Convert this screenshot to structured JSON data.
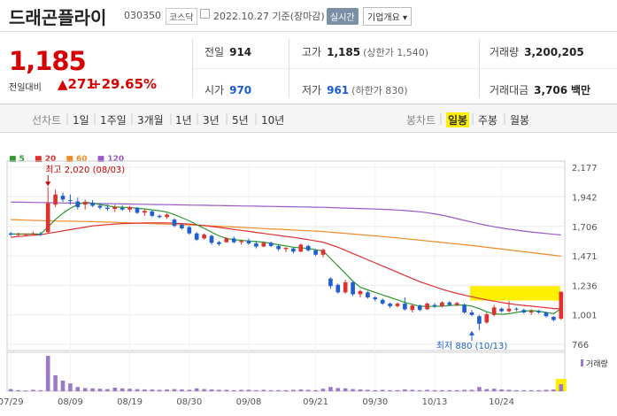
{
  "header": {
    "name": "드래곤플라이",
    "code": "030350",
    "market": "코스닥",
    "date": "2022.10.27 기준(장마감)",
    "live_btn": "실시간",
    "info_btn": "기업개요 ▾"
  },
  "summary": {
    "price": "1,185",
    "change_label": "전일대비",
    "change_value": "271",
    "change_pct": "+29.65%",
    "prev_label": "전일",
    "prev_value": "914",
    "high_label": "고가",
    "high_value": "1,185",
    "high_sub": "(상한가 1,540)",
    "volume_label": "거래량",
    "volume_value": "3,200,205",
    "open_label": "시가",
    "open_value": "970",
    "low_label": "저가",
    "low_value": "961",
    "low_sub": "(하한가 830)",
    "amount_label": "거래대금",
    "amount_value": "3,706",
    "amount_unit": "백만"
  },
  "tabs": {
    "line_label": "선차트",
    "periods": [
      "1일",
      "1주일",
      "3개월",
      "1년",
      "3년",
      "5년",
      "10년"
    ],
    "candle_label": "봉차트",
    "daily": "일봉",
    "weekly": "주봉",
    "monthly": "월봉"
  },
  "legend": [
    {
      "label": "5",
      "color": "#2e9a2e"
    },
    {
      "label": "20",
      "color": "#e03030"
    },
    {
      "label": "60",
      "color": "#f08c28"
    },
    {
      "label": "120",
      "color": "#9b59c6"
    }
  ],
  "colors": {
    "up": "#e03030",
    "down": "#1f5fd1",
    "highlight": "#ffef00"
  },
  "chart_data": {
    "type": "candlestick",
    "y_ticks": [
      2177,
      1942,
      1706,
      1471,
      1236,
      1001,
      766
    ],
    "ylim": [
      766,
      2177
    ],
    "x_labels": [
      "07/29",
      "08/09",
      "08/19",
      "08/30",
      "09/08",
      "09/21",
      "09/30",
      "10/13",
      "10/24"
    ],
    "max_annotation": "최고 2,020 (08/03)",
    "min_annotation": "최저 880 (10/13)",
    "volume_label": "거래량",
    "candles": [
      {
        "o": 1650,
        "h": 1660,
        "l": 1630,
        "c": 1640
      },
      {
        "o": 1640,
        "h": 1655,
        "l": 1630,
        "c": 1645
      },
      {
        "o": 1640,
        "h": 1650,
        "l": 1635,
        "c": 1645
      },
      {
        "o": 1645,
        "h": 1665,
        "l": 1635,
        "c": 1650
      },
      {
        "o": 1645,
        "h": 1660,
        "l": 1630,
        "c": 1640
      },
      {
        "o": 1660,
        "h": 2020,
        "l": 1650,
        "c": 1890
      },
      {
        "o": 1880,
        "h": 2000,
        "l": 1860,
        "c": 1960
      },
      {
        "o": 1950,
        "h": 1975,
        "l": 1900,
        "c": 1920
      },
      {
        "o": 1915,
        "h": 1960,
        "l": 1880,
        "c": 1910
      },
      {
        "o": 1905,
        "h": 1935,
        "l": 1840,
        "c": 1860
      },
      {
        "o": 1880,
        "h": 1920,
        "l": 1840,
        "c": 1900
      },
      {
        "o": 1895,
        "h": 1915,
        "l": 1860,
        "c": 1870
      },
      {
        "o": 1870,
        "h": 1890,
        "l": 1840,
        "c": 1855
      },
      {
        "o": 1855,
        "h": 1880,
        "l": 1830,
        "c": 1845
      },
      {
        "o": 1845,
        "h": 1880,
        "l": 1820,
        "c": 1860
      },
      {
        "o": 1855,
        "h": 1875,
        "l": 1830,
        "c": 1840
      },
      {
        "o": 1840,
        "h": 1870,
        "l": 1820,
        "c": 1860
      },
      {
        "o": 1855,
        "h": 1860,
        "l": 1805,
        "c": 1815
      },
      {
        "o": 1815,
        "h": 1840,
        "l": 1790,
        "c": 1830
      },
      {
        "o": 1825,
        "h": 1835,
        "l": 1780,
        "c": 1790
      },
      {
        "o": 1790,
        "h": 1800,
        "l": 1770,
        "c": 1780
      },
      {
        "o": 1780,
        "h": 1810,
        "l": 1765,
        "c": 1800
      },
      {
        "o": 1760,
        "h": 1770,
        "l": 1700,
        "c": 1710
      },
      {
        "o": 1720,
        "h": 1730,
        "l": 1680,
        "c": 1690
      },
      {
        "o": 1700,
        "h": 1710,
        "l": 1640,
        "c": 1650
      },
      {
        "o": 1650,
        "h": 1660,
        "l": 1590,
        "c": 1600
      },
      {
        "o": 1610,
        "h": 1650,
        "l": 1600,
        "c": 1640
      },
      {
        "o": 1630,
        "h": 1640,
        "l": 1560,
        "c": 1575
      },
      {
        "o": 1580,
        "h": 1590,
        "l": 1550,
        "c": 1565
      },
      {
        "o": 1580,
        "h": 1620,
        "l": 1575,
        "c": 1610
      },
      {
        "o": 1610,
        "h": 1625,
        "l": 1570,
        "c": 1580
      },
      {
        "o": 1580,
        "h": 1600,
        "l": 1560,
        "c": 1590
      },
      {
        "o": 1590,
        "h": 1610,
        "l": 1560,
        "c": 1570
      },
      {
        "o": 1570,
        "h": 1590,
        "l": 1530,
        "c": 1545
      },
      {
        "o": 1545,
        "h": 1580,
        "l": 1540,
        "c": 1575
      },
      {
        "o": 1575,
        "h": 1585,
        "l": 1540,
        "c": 1550
      },
      {
        "o": 1550,
        "h": 1560,
        "l": 1510,
        "c": 1525
      },
      {
        "o": 1525,
        "h": 1540,
        "l": 1500,
        "c": 1535
      },
      {
        "o": 1530,
        "h": 1540,
        "l": 1490,
        "c": 1505
      },
      {
        "o": 1505,
        "h": 1570,
        "l": 1500,
        "c": 1560
      },
      {
        "o": 1550,
        "h": 1560,
        "l": 1505,
        "c": 1515
      },
      {
        "o": 1515,
        "h": 1525,
        "l": 1470,
        "c": 1480
      },
      {
        "o": 1480,
        "h": 1530,
        "l": 1460,
        "c": 1520
      },
      {
        "o": 1290,
        "h": 1300,
        "l": 1210,
        "c": 1230
      },
      {
        "o": 1240,
        "h": 1250,
        "l": 1170,
        "c": 1180
      },
      {
        "o": 1180,
        "h": 1280,
        "l": 1170,
        "c": 1260
      },
      {
        "o": 1260,
        "h": 1275,
        "l": 1150,
        "c": 1165
      },
      {
        "o": 1165,
        "h": 1200,
        "l": 1140,
        "c": 1190
      },
      {
        "o": 1180,
        "h": 1190,
        "l": 1130,
        "c": 1140
      },
      {
        "o": 1140,
        "h": 1150,
        "l": 1110,
        "c": 1125
      },
      {
        "o": 1120,
        "h": 1130,
        "l": 1080,
        "c": 1090
      },
      {
        "o": 1090,
        "h": 1100,
        "l": 1055,
        "c": 1070
      },
      {
        "o": 1070,
        "h": 1100,
        "l": 1060,
        "c": 1090
      },
      {
        "o": 1090,
        "h": 1140,
        "l": 1035,
        "c": 1045
      },
      {
        "o": 1040,
        "h": 1085,
        "l": 1020,
        "c": 1075
      },
      {
        "o": 1075,
        "h": 1085,
        "l": 1030,
        "c": 1040
      },
      {
        "o": 1045,
        "h": 1100,
        "l": 1040,
        "c": 1090
      },
      {
        "o": 1080,
        "h": 1095,
        "l": 1055,
        "c": 1070
      },
      {
        "o": 1070,
        "h": 1110,
        "l": 1060,
        "c": 1100
      },
      {
        "o": 1100,
        "h": 1110,
        "l": 1070,
        "c": 1080
      },
      {
        "o": 1080,
        "h": 1105,
        "l": 1070,
        "c": 1095
      },
      {
        "o": 1080,
        "h": 1090,
        "l": 1010,
        "c": 1020
      },
      {
        "o": 1020,
        "h": 1040,
        "l": 990,
        "c": 1000
      },
      {
        "o": 990,
        "h": 1000,
        "l": 880,
        "c": 930
      },
      {
        "o": 940,
        "h": 1020,
        "l": 930,
        "c": 1005
      },
      {
        "o": 1000,
        "h": 1080,
        "l": 990,
        "c": 1060
      },
      {
        "o": 1050,
        "h": 1060,
        "l": 1020,
        "c": 1030
      },
      {
        "o": 1030,
        "h": 1110,
        "l": 1020,
        "c": 1050
      },
      {
        "o": 1050,
        "h": 1060,
        "l": 1030,
        "c": 1045
      },
      {
        "o": 1040,
        "h": 1050,
        "l": 1010,
        "c": 1020
      },
      {
        "o": 1020,
        "h": 1045,
        "l": 1000,
        "c": 1030
      },
      {
        "o": 1030,
        "h": 1040,
        "l": 1010,
        "c": 1020
      },
      {
        "o": 1020,
        "h": 1025,
        "l": 980,
        "c": 990
      },
      {
        "o": 985,
        "h": 990,
        "l": 950,
        "c": 960
      },
      {
        "o": 970,
        "h": 1185,
        "l": 961,
        "c": 1185
      }
    ],
    "volumes": [
      6,
      3,
      2,
      4,
      3,
      100,
      45,
      30,
      22,
      12,
      9,
      8,
      7,
      6,
      10,
      8,
      7,
      6,
      5,
      5,
      4,
      5,
      6,
      5,
      4,
      8,
      6,
      5,
      4,
      4,
      3,
      4,
      4,
      3,
      4,
      3,
      3,
      3,
      4,
      5,
      4,
      3,
      7,
      12,
      9,
      8,
      6,
      5,
      4,
      3,
      4,
      3,
      3,
      5,
      4,
      3,
      4,
      3,
      3,
      3,
      3,
      4,
      4,
      12,
      6,
      7,
      5,
      4,
      3,
      3,
      3,
      3,
      4,
      5,
      16
    ],
    "ma5": [
      1645,
      1645,
      1645,
      1645,
      1645,
      1700,
      1760,
      1810,
      1850,
      1880,
      1900,
      1890,
      1880,
      1870,
      1860,
      1858,
      1856,
      1850,
      1845,
      1838,
      1830,
      1820,
      1800,
      1775,
      1750,
      1720,
      1690,
      1660,
      1630,
      1610,
      1600,
      1595,
      1590,
      1585,
      1580,
      1570,
      1560,
      1550,
      1540,
      1535,
      1530,
      1520,
      1510,
      1450,
      1390,
      1330,
      1270,
      1220,
      1200,
      1180,
      1160,
      1140,
      1120,
      1100,
      1085,
      1070,
      1068,
      1068,
      1070,
      1075,
      1078,
      1080,
      1070,
      1050,
      1025,
      1010,
      1005,
      1010,
      1020,
      1030,
      1035,
      1030,
      1020,
      1010,
      1050
    ],
    "ma20": [
      1620,
      1625,
      1630,
      1635,
      1640,
      1650,
      1660,
      1670,
      1680,
      1690,
      1700,
      1710,
      1715,
      1720,
      1725,
      1728,
      1730,
      1732,
      1733,
      1734,
      1735,
      1734,
      1732,
      1728,
      1724,
      1718,
      1712,
      1705,
      1698,
      1690,
      1682,
      1674,
      1666,
      1658,
      1650,
      1642,
      1634,
      1626,
      1618,
      1610,
      1600,
      1590,
      1580,
      1560,
      1540,
      1515,
      1490,
      1465,
      1440,
      1415,
      1390,
      1365,
      1340,
      1315,
      1290,
      1265,
      1245,
      1225,
      1205,
      1188,
      1172,
      1158,
      1145,
      1132,
      1120,
      1110,
      1100,
      1090,
      1082,
      1076,
      1070,
      1064,
      1058,
      1052,
      1048
    ],
    "ma60": [
      1760,
      1758,
      1756,
      1754,
      1752,
      1750,
      1749,
      1748,
      1747,
      1746,
      1745,
      1744,
      1742,
      1740,
      1738,
      1736,
      1734,
      1732,
      1730,
      1728,
      1726,
      1724,
      1722,
      1720,
      1718,
      1716,
      1713,
      1710,
      1707,
      1704,
      1701,
      1698,
      1695,
      1692,
      1689,
      1686,
      1683,
      1680,
      1677,
      1674,
      1671,
      1668,
      1665,
      1660,
      1655,
      1650,
      1645,
      1640,
      1635,
      1630,
      1625,
      1620,
      1614,
      1608,
      1602,
      1596,
      1590,
      1584,
      1578,
      1572,
      1566,
      1560,
      1553,
      1546,
      1539,
      1532,
      1525,
      1518,
      1511,
      1504,
      1497,
      1490,
      1483,
      1476,
      1468
    ],
    "ma120": [
      1900,
      1899,
      1898,
      1897,
      1896,
      1895,
      1894,
      1893,
      1892,
      1891,
      1890,
      1889,
      1888,
      1887,
      1886,
      1885,
      1884,
      1883,
      1882,
      1881,
      1880,
      1879,
      1878,
      1877,
      1876,
      1875,
      1874,
      1873,
      1872,
      1871,
      1870,
      1869,
      1868,
      1867,
      1866,
      1865,
      1864,
      1863,
      1862,
      1861,
      1860,
      1859,
      1858,
      1856,
      1854,
      1852,
      1850,
      1848,
      1846,
      1844,
      1842,
      1839,
      1836,
      1832,
      1828,
      1822,
      1815,
      1806,
      1795,
      1782,
      1768,
      1754,
      1740,
      1726,
      1714,
      1703,
      1693,
      1684,
      1676,
      1668,
      1661,
      1655,
      1649,
      1643,
      1638
    ]
  }
}
